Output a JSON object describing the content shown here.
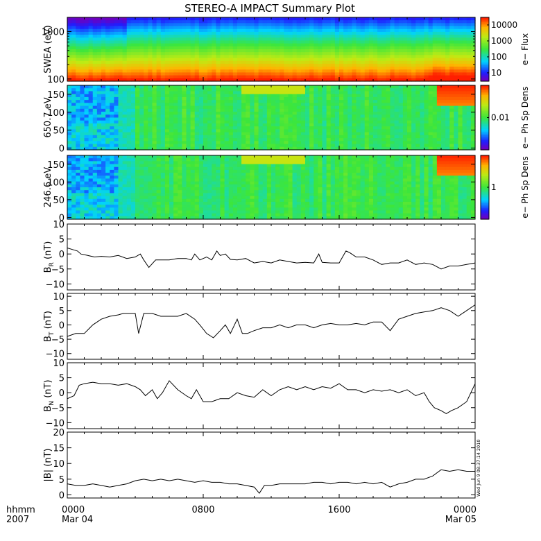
{
  "title": "STEREO-A IMPACT Summary Plot",
  "time_axis": {
    "corner_top": "hhmm",
    "corner_bottom": "2007",
    "ticks": [
      {
        "hour": 0,
        "label": "0000",
        "sub": "Mar 04"
      },
      {
        "hour": 8,
        "label": "0800",
        "sub": ""
      },
      {
        "hour": 16,
        "label": "1600",
        "sub": ""
      },
      {
        "hour": 24,
        "label": "0000",
        "sub": "Mar 05"
      }
    ],
    "range_hours": [
      0,
      24
    ],
    "minor_step_hours": 1
  },
  "timestamp": "Wed Jun 9 08:37:14 2010",
  "colors": {
    "trace": "#000000",
    "axes": "#000000"
  },
  "chart_data": [
    {
      "type": "heatmap",
      "ylabel": "SWEA (eV)",
      "yscale": "log",
      "ylim": [
        90,
        2000
      ],
      "yticks": [
        {
          "v": 100,
          "label": "100"
        },
        {
          "v": 1000,
          "label": "1000"
        }
      ],
      "colorbar": {
        "label": "e− Flux",
        "scale": "log",
        "range": [
          3,
          30000
        ],
        "ticks": [
          {
            "v": 10,
            "label": "10"
          },
          {
            "v": 100,
            "label": "100"
          },
          {
            "v": 1000,
            "label": "1000"
          },
          {
            "v": 10000,
            "label": "10000"
          }
        ]
      },
      "pattern": {
        "kind": "energy",
        "low_color": "#ff3000",
        "high_color": "#1040ff",
        "late_boost_hour": 21
      }
    },
    {
      "type": "heatmap",
      "ylabel": "650.7 eV",
      "yscale": "linear",
      "ylim": [
        -5,
        175
      ],
      "yticks": [
        {
          "v": 0,
          "label": "0"
        },
        {
          "v": 50,
          "label": "50"
        },
        {
          "v": 100,
          "label": "100"
        },
        {
          "v": 150,
          "label": "150"
        }
      ],
      "colorbar": {
        "label": "e− Ph Sp Dens",
        "scale": "log",
        "range": [
          0.0005,
          0.2
        ],
        "ticks": [
          {
            "v": 0.01,
            "label": "0.01"
          }
        ]
      },
      "pattern": {
        "kind": "pitch",
        "seed": 3
      }
    },
    {
      "type": "heatmap",
      "ylabel": "246.6 eV",
      "yscale": "linear",
      "ylim": [
        -5,
        175
      ],
      "yticks": [
        {
          "v": 0,
          "label": "0"
        },
        {
          "v": 50,
          "label": "50"
        },
        {
          "v": 100,
          "label": "100"
        },
        {
          "v": 150,
          "label": "150"
        }
      ],
      "colorbar": {
        "label": "e− Ph Sp Dens",
        "scale": "log",
        "range": [
          0.05,
          20
        ],
        "ticks": [
          {
            "v": 1,
            "label": "1"
          }
        ]
      },
      "pattern": {
        "kind": "pitch",
        "seed": 7
      }
    },
    {
      "type": "line",
      "ylabel": "B_R (nT)",
      "ylabel_main": "B",
      "ylabel_sub": "R",
      "ylabel_unit": " (nT)",
      "ylim": [
        -12,
        10
      ],
      "yticks": [
        {
          "v": -10,
          "label": "−10"
        },
        {
          "v": -5,
          "label": "−5"
        },
        {
          "v": 0,
          "label": "0"
        },
        {
          "v": 5,
          "label": "5"
        },
        {
          "v": 10,
          "label": "10"
        }
      ],
      "x": [
        0,
        0.3,
        0.6,
        0.8,
        1.2,
        1.6,
        2,
        2.5,
        3,
        3.5,
        4,
        4.3,
        4.5,
        4.8,
        5.2,
        6,
        6.5,
        7,
        7.3,
        7.5,
        7.8,
        8.2,
        8.5,
        8.8,
        9,
        9.3,
        9.6,
        10,
        10.5,
        11,
        11.5,
        12,
        12.5,
        13,
        13.5,
        14,
        14.5,
        14.8,
        15,
        15.5,
        16,
        16.4,
        16.6,
        17,
        17.5,
        18,
        18.5,
        19,
        19.5,
        20,
        20.5,
        21,
        21.5,
        22,
        22.5,
        23,
        23.5,
        24
      ],
      "y": [
        2,
        1.5,
        1,
        0,
        -0.5,
        -1,
        -0.8,
        -1,
        -0.5,
        -1.5,
        -1,
        0,
        -2,
        -4.5,
        -2,
        -2,
        -1.5,
        -1.5,
        -2,
        0,
        -2,
        -1,
        -2,
        1,
        -0.5,
        0,
        -1.8,
        -2,
        -1.5,
        -3,
        -2.5,
        -3,
        -2,
        -2.5,
        -3,
        -2.8,
        -3,
        0,
        -2.8,
        -3,
        -3,
        1,
        0.5,
        -1,
        -1,
        -2,
        -3.5,
        -3,
        -3,
        -2,
        -3.5,
        -3,
        -3.5,
        -5,
        -4,
        -4,
        -3.5,
        -3
      ]
    },
    {
      "type": "line",
      "ylabel": "B_T (nT)",
      "ylabel_main": "B",
      "ylabel_sub": "T",
      "ylabel_unit": " (nT)",
      "ylim": [
        -12,
        11
      ],
      "yticks": [
        {
          "v": -10,
          "label": "−10"
        },
        {
          "v": -5,
          "label": "−5"
        },
        {
          "v": 0,
          "label": "0"
        },
        {
          "v": 5,
          "label": "5"
        },
        {
          "v": 10,
          "label": "10"
        }
      ],
      "x": [
        0,
        0.5,
        1,
        1.5,
        2,
        2.5,
        3,
        3.3,
        3.7,
        4,
        4.2,
        4.5,
        4.7,
        5,
        5.5,
        6,
        6.5,
        7,
        7.5,
        7.8,
        8.2,
        8.6,
        9,
        9.3,
        9.6,
        10,
        10.3,
        10.6,
        11,
        11.5,
        12,
        12.5,
        13,
        13.5,
        14,
        14.5,
        15,
        15.5,
        16,
        16.5,
        17,
        17.5,
        18,
        18.5,
        19,
        19.5,
        20,
        20.5,
        21,
        21.5,
        22,
        22.5,
        23,
        23.5,
        24
      ],
      "y": [
        -4,
        -3,
        -3,
        0,
        2,
        3,
        3.5,
        4,
        4,
        4,
        -3,
        4,
        4,
        4,
        3,
        3,
        3,
        4,
        2,
        0,
        -3,
        -4.5,
        -2,
        0,
        -3,
        2,
        -3,
        -3,
        -2,
        -1,
        -1,
        0,
        -1,
        0,
        0,
        -1,
        0,
        0.5,
        0,
        0,
        0.5,
        0,
        1,
        1,
        -2,
        2,
        3,
        4,
        4.5,
        5,
        6,
        5,
        3,
        5,
        7
      ]
    },
    {
      "type": "line",
      "ylabel": "B_N (nT)",
      "ylabel_main": "B",
      "ylabel_sub": "N",
      "ylabel_unit": " (nT)",
      "ylim": [
        -12,
        10
      ],
      "yticks": [
        {
          "v": -10,
          "label": "−10"
        },
        {
          "v": -5,
          "label": "−5"
        },
        {
          "v": 0,
          "label": "0"
        },
        {
          "v": 5,
          "label": "5"
        },
        {
          "v": 10,
          "label": "10"
        }
      ],
      "x": [
        0,
        0.4,
        0.7,
        1,
        1.5,
        2,
        2.5,
        3,
        3.5,
        4,
        4.3,
        4.6,
        5,
        5.3,
        5.6,
        6,
        6.5,
        7,
        7.3,
        7.6,
        8,
        8.5,
        9,
        9.5,
        10,
        10.5,
        11,
        11.5,
        12,
        12.5,
        13,
        13.5,
        14,
        14.5,
        15,
        15.5,
        16,
        16.5,
        17,
        17.5,
        18,
        18.5,
        19,
        19.5,
        20,
        20.5,
        21,
        21.3,
        21.6,
        22,
        22.3,
        22.6,
        23,
        23.5,
        24
      ],
      "y": [
        -2,
        -1,
        2.5,
        3,
        3.5,
        3,
        3,
        2.5,
        3,
        2,
        1,
        -1,
        1,
        -2,
        0,
        4,
        1,
        -1,
        -2,
        1,
        -3,
        -3,
        -2,
        -2,
        0,
        -1,
        -1.5,
        1,
        -1,
        1,
        2,
        1,
        2,
        1,
        2,
        1.5,
        3,
        1,
        1,
        0,
        1,
        0.5,
        1,
        0,
        1,
        -1,
        0,
        -3,
        -5,
        -6,
        -7,
        -6,
        -5,
        -3,
        3
      ]
    },
    {
      "type": "line",
      "ylabel": "|B| (nT)",
      "ylabel_main": "|B|",
      "ylabel_sub": "",
      "ylabel_unit": " (nT)",
      "ylim": [
        -1,
        20
      ],
      "yticks": [
        {
          "v": 0,
          "label": "0"
        },
        {
          "v": 5,
          "label": "5"
        },
        {
          "v": 10,
          "label": "10"
        },
        {
          "v": 15,
          "label": "15"
        },
        {
          "v": 20,
          "label": "20"
        }
      ],
      "x": [
        0,
        0.5,
        1,
        1.5,
        2,
        2.5,
        3,
        3.5,
        4,
        4.5,
        5,
        5.5,
        6,
        6.5,
        7,
        7.5,
        8,
        8.5,
        9,
        9.5,
        10,
        10.5,
        11,
        11.3,
        11.6,
        12,
        12.5,
        13,
        13.5,
        14,
        14.5,
        15,
        15.5,
        16,
        16.5,
        17,
        17.5,
        18,
        18.5,
        19,
        19.5,
        20,
        20.5,
        21,
        21.5,
        22,
        22.5,
        23,
        23.5,
        24
      ],
      "y": [
        3.5,
        3,
        3,
        3.5,
        3,
        2.5,
        3,
        3.5,
        4.5,
        5,
        4.5,
        5,
        4.5,
        5,
        4.5,
        4,
        4.5,
        4,
        4,
        3.5,
        3.5,
        3,
        2.5,
        0.5,
        3,
        3,
        3.5,
        3.5,
        3.5,
        3.5,
        4,
        4,
        3.5,
        4,
        4,
        3.5,
        4,
        3.5,
        4,
        2.5,
        3.5,
        4,
        5,
        5,
        6,
        8,
        7.5,
        8,
        7.5,
        7.5
      ]
    }
  ]
}
